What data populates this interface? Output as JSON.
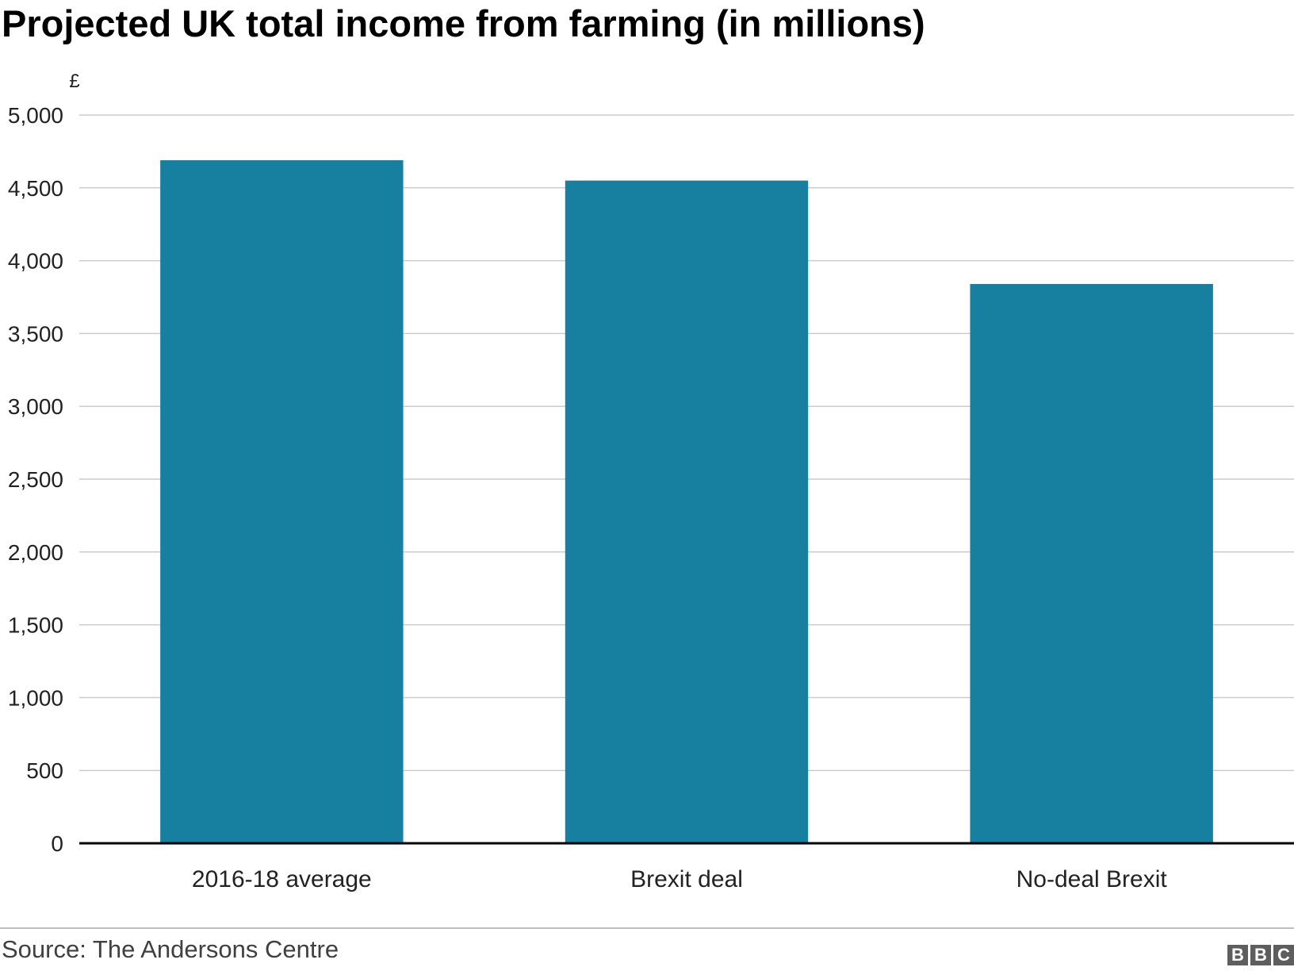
{
  "chart_data": {
    "type": "bar",
    "title": "Projected UK total income from farming (in millions)",
    "ylabel": "£",
    "xlabel": "",
    "categories": [
      "2016-18 average",
      "Brexit deal",
      "No-deal Brexit"
    ],
    "values": [
      4690,
      4550,
      3840
    ],
    "ylim": [
      0,
      5000
    ],
    "yticks": [
      0,
      500,
      1000,
      1500,
      2000,
      2500,
      3000,
      3500,
      4000,
      4500,
      5000
    ],
    "ytick_labels": [
      "0",
      "500",
      "1,000",
      "1,500",
      "2,000",
      "2,500",
      "3,000",
      "3,500",
      "4,000",
      "4,500",
      "5,000"
    ],
    "grid": true,
    "legend": "none"
  },
  "colors": {
    "bar": "#1780a1",
    "grid": "#cccccc",
    "baseline": "#000000",
    "text": "#222222"
  },
  "source": "Source: The Andersons Centre",
  "logo": {
    "letters": [
      "B",
      "B",
      "C"
    ],
    "text": "BBC",
    "icon": "bbc-logo-icon"
  }
}
